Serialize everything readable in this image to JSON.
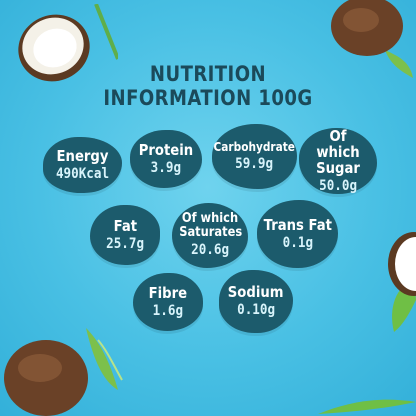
{
  "title": {
    "line1": "NUTRITION",
    "line2": "INFORMATION  100G"
  },
  "nutrients": [
    {
      "label": "Energy",
      "value": "490Kcal"
    },
    {
      "label": "Protein",
      "value": "3.9g"
    },
    {
      "label": "Carbohydrate",
      "value": "59.9g"
    },
    {
      "label": "Of which Sugar",
      "value": "50.0g"
    },
    {
      "label": "Fat",
      "value": "25.7g"
    },
    {
      "label": "Of which Saturates",
      "value": "20.6g"
    },
    {
      "label": "Trans Fat",
      "value": "0.1g"
    },
    {
      "label": "Fibre",
      "value": "1.6g"
    },
    {
      "label": "Sodium",
      "value": "0.10g"
    }
  ],
  "colors": {
    "background": "#49c0e4",
    "blob": "#1c5b6c",
    "title": "#1b4a5a"
  },
  "icons": [
    "coconut-half-icon",
    "coconut-icon",
    "leaf-icon"
  ]
}
